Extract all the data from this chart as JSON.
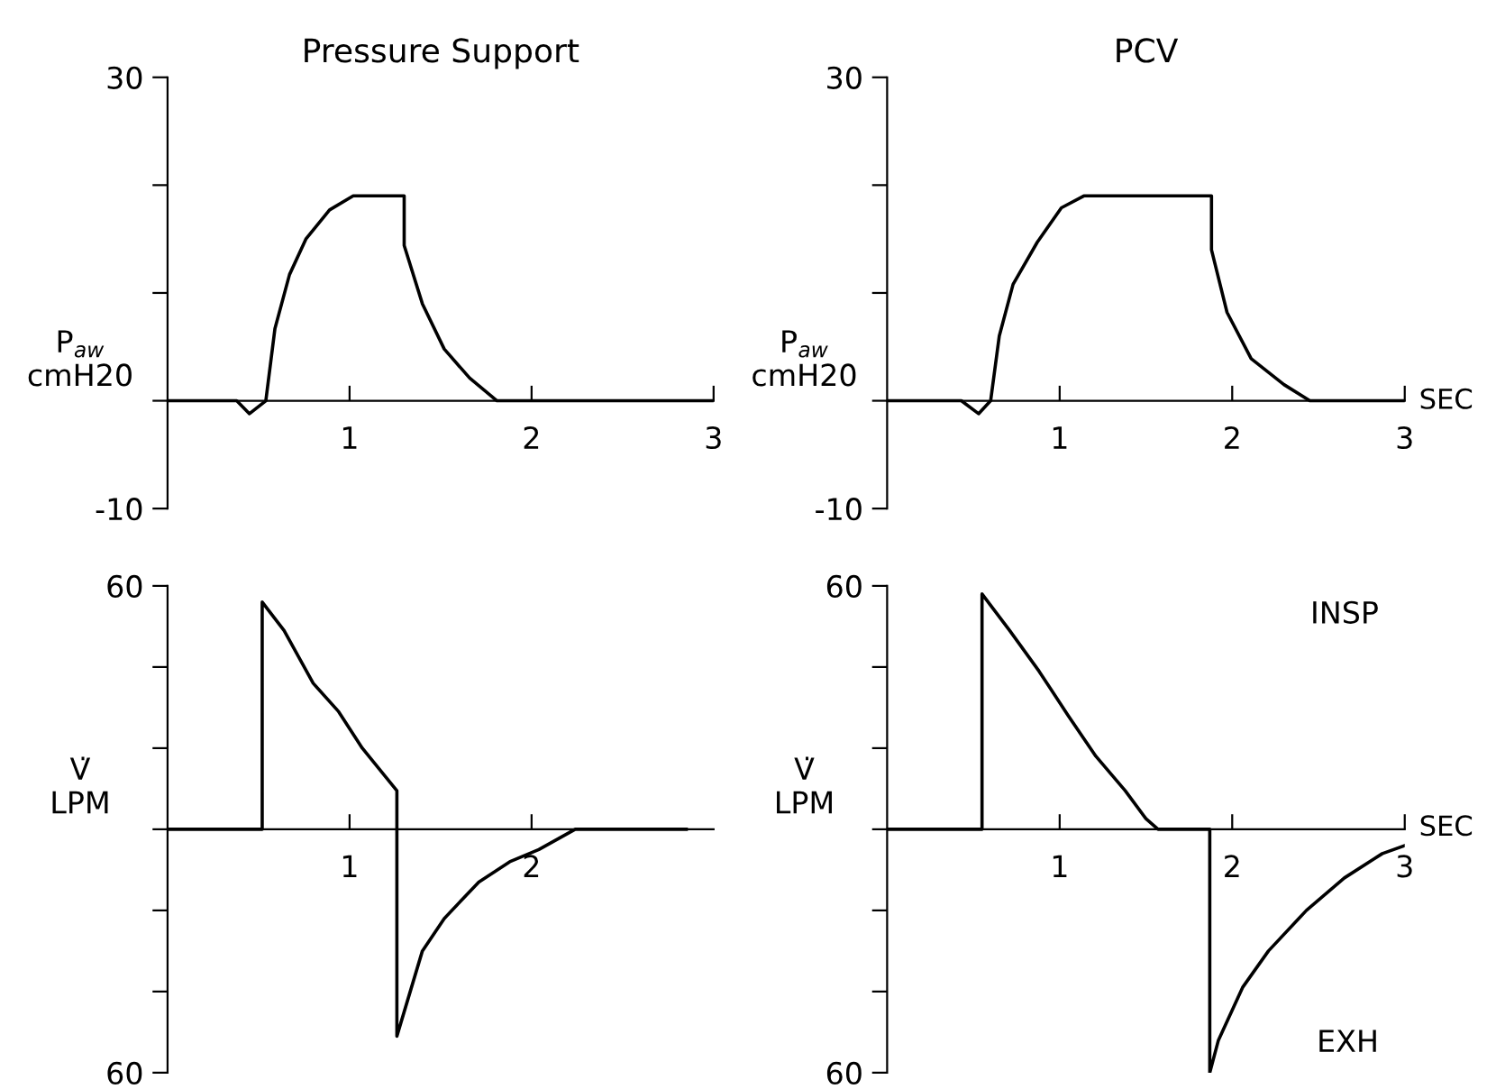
{
  "chart_data": [
    {
      "type": "line",
      "title": "Pressure Support",
      "ylabel": "P$_{aw}$\ncmH20",
      "color": "#000000",
      "x": [
        0,
        0.38,
        0.45,
        0.54,
        0.59,
        0.67,
        0.76,
        0.89,
        1.02,
        1.1,
        1.3,
        1.3,
        1.4,
        1.52,
        1.66,
        1.81,
        3
      ],
      "values": [
        0,
        0,
        -1.2,
        0,
        6.7,
        11.7,
        15,
        17.7,
        19,
        19,
        19,
        14.4,
        9,
        4.8,
        2.1,
        0,
        0
      ],
      "xlim": [
        0,
        3
      ],
      "ylim": [
        -10,
        30
      ],
      "xticks": [
        1,
        2,
        3
      ],
      "yticks": [
        30,
        {
          "value": 20,
          "label": null
        },
        {
          "value": 10,
          "label": null
        },
        {
          "value": 0,
          "label": null
        },
        -10
      ],
      "grid": false,
      "legend": false
    },
    {
      "type": "line",
      "title": "PCV",
      "ylabel": "P$_{aw}$\ncmH20",
      "xlabel": "SEC",
      "color": "#000000",
      "x": [
        0,
        0.43,
        0.53,
        0.6,
        0.65,
        0.73,
        0.87,
        1.01,
        1.14,
        1.88,
        1.88,
        1.97,
        2.11,
        2.3,
        2.45,
        3
      ],
      "values": [
        0,
        0,
        -1.2,
        0,
        6,
        10.8,
        14.7,
        17.9,
        19,
        19,
        14,
        8.2,
        3.9,
        1.5,
        0,
        0
      ],
      "xlim": [
        0,
        3
      ],
      "ylim": [
        -10,
        30
      ],
      "xticks": [
        1,
        2,
        3
      ],
      "yticks": [
        30,
        {
          "value": 20,
          "label": null
        },
        {
          "value": 10,
          "label": null
        },
        {
          "value": 0,
          "label": null
        },
        -10
      ],
      "grid": false,
      "legend": false
    },
    {
      "type": "line",
      "ylabel": "V̇\nLPM",
      "color": "#000000",
      "x": [
        0,
        0.52,
        0.52,
        0.64,
        0.8,
        0.94,
        1.07,
        1.26,
        1.26,
        1.3,
        1.4,
        1.52,
        1.71,
        1.88,
        2.04,
        2.24,
        2.85
      ],
      "values": [
        0,
        0,
        56,
        49,
        36,
        29,
        20,
        9.5,
        -51,
        -45,
        -30,
        -22,
        -13,
        -8,
        -5,
        0,
        0
      ],
      "xlim": [
        0,
        3
      ],
      "ylim": [
        -60,
        60
      ],
      "xticks": [
        1,
        2
      ],
      "yticks": [
        60,
        {
          "value": 40,
          "label": null
        },
        {
          "value": 20,
          "label": null
        },
        {
          "value": 0,
          "label": null
        },
        {
          "value": -20,
          "label": null
        },
        {
          "value": -40,
          "label": null
        },
        {
          "value": -60,
          "label": "60"
        }
      ],
      "grid": false,
      "legend": false
    },
    {
      "type": "line",
      "ylabel": "V̇\nLPM",
      "xlabel": "SEC",
      "color": "#000000",
      "annotations": [
        "INSP",
        "EXH"
      ],
      "x": [
        0,
        0.55,
        0.55,
        0.71,
        0.88,
        1.05,
        1.21,
        1.38,
        1.5,
        1.57,
        1.87,
        1.87,
        1.92,
        2.06,
        2.21,
        2.43,
        2.65,
        2.87,
        3
      ],
      "values": [
        0,
        0,
        58,
        49,
        39,
        28,
        18,
        9.5,
        2.6,
        0,
        0,
        -60,
        -52,
        -39,
        -30,
        -20,
        -12,
        -6,
        -4
      ],
      "xlim": [
        0,
        3
      ],
      "ylim": [
        -60,
        60
      ],
      "xticks": [
        1,
        2,
        3
      ],
      "yticks": [
        60,
        {
          "value": 40,
          "label": null
        },
        {
          "value": 20,
          "label": null
        },
        {
          "value": 0,
          "label": null
        },
        {
          "value": -20,
          "label": null
        },
        {
          "value": -40,
          "label": null
        },
        {
          "value": -60,
          "label": "60"
        }
      ],
      "grid": false,
      "legend": false
    }
  ]
}
